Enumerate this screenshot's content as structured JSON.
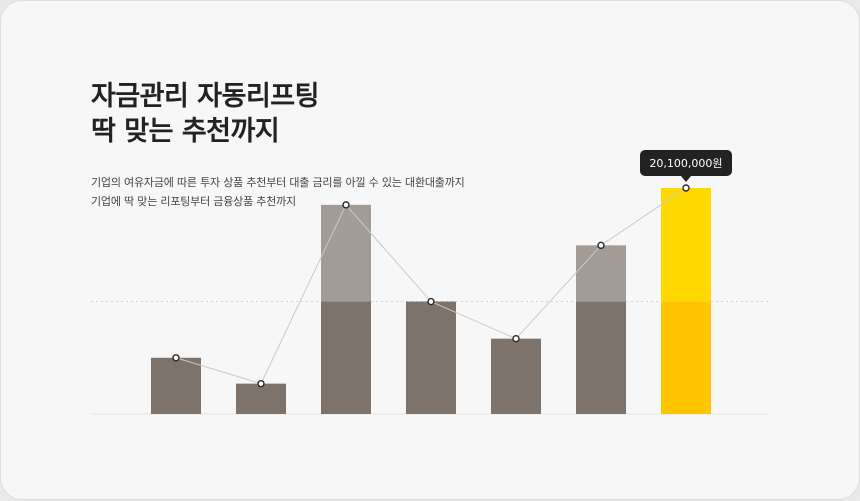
{
  "headline": {
    "line1": "자금관리 자동리프팅",
    "line2": "딱 맞는 추천까지"
  },
  "description": {
    "line1": "기업의 여유자금에 따른 투자 상품 추천부터 대출 금리를 아낄 수 있는 대환대출까지",
    "line2": "기업에 딱 맞는 리포팅부터 금융상품 추천까지"
  },
  "chart_data": {
    "type": "bar",
    "categories": [
      "",
      "",
      "",
      "",
      "",
      "",
      ""
    ],
    "values": [
      5000000,
      2700000,
      18600000,
      10000000,
      6700000,
      15000000,
      20100000
    ],
    "highlight_index": 6,
    "reference_line": 10000000,
    "ylim": [
      0,
      20100000
    ],
    "tooltip": {
      "index": 6,
      "label": "20,100,000원"
    },
    "trend_line": true,
    "colors": {
      "bar_base": "#7d736a",
      "bar_top": "#a39c96",
      "highlight_base": "#ffc600",
      "highlight_top": "#ffd800",
      "line": "#c9c9c9",
      "tooltip_bg": "#222222"
    }
  }
}
